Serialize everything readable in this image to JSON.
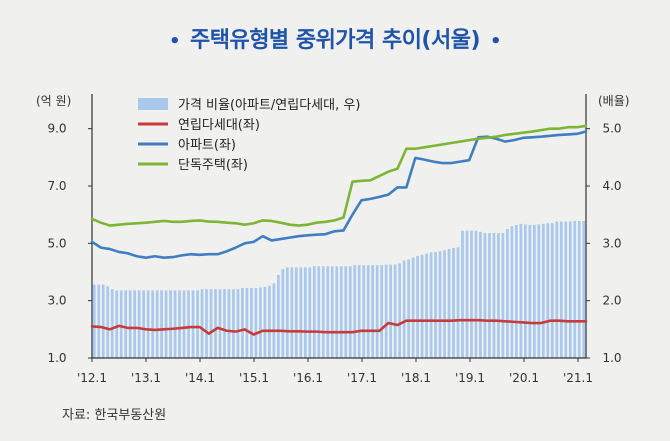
{
  "title": "주택유형별 중위가격 추이(서울)",
  "source": "자료: 한국부동산원",
  "chart_data": {
    "type": "line",
    "title": "주택유형별 중위가격 추이(서울)",
    "y_left_label": "(억 원)",
    "y_right_label": "(배율)",
    "y_left_ticks": [
      "9.0",
      "7.0",
      "5.0",
      "3.0",
      "1.0"
    ],
    "y_right_ticks": [
      "5.0",
      "4.0",
      "3.0",
      "2.0",
      "1.0"
    ],
    "y_left_lim": [
      1,
      10
    ],
    "y_right_lim": [
      1,
      5.5
    ],
    "x_ticks": [
      "'12.1",
      "'13.1",
      "'14.1",
      "'15.1",
      "'16.1",
      "'17.1",
      "'18.1",
      "'19.1",
      "'20.1",
      "'21.1"
    ],
    "x_range": [
      0,
      110
    ],
    "legend_position": "top-left",
    "series": [
      {
        "name": "가격 비율(아파트/연립다세대, 우)",
        "kind": "bar",
        "axis": "right",
        "color": "#a9c8ee",
        "values": [
          2.28,
          2.28,
          2.28,
          2.25,
          2.2,
          2.18,
          2.18,
          2.18,
          2.18,
          2.18,
          2.18,
          2.18,
          2.18,
          2.18,
          2.18,
          2.18,
          2.18,
          2.18,
          2.18,
          2.18,
          2.18,
          2.18,
          2.18,
          2.18,
          2.2,
          2.2,
          2.2,
          2.2,
          2.2,
          2.2,
          2.2,
          2.2,
          2.2,
          2.22,
          2.22,
          2.22,
          2.22,
          2.23,
          2.24,
          2.26,
          2.3,
          2.45,
          2.55,
          2.58,
          2.58,
          2.58,
          2.58,
          2.58,
          2.58,
          2.6,
          2.6,
          2.6,
          2.6,
          2.6,
          2.6,
          2.6,
          2.6,
          2.6,
          2.62,
          2.62,
          2.62,
          2.62,
          2.62,
          2.62,
          2.62,
          2.63,
          2.63,
          2.63,
          2.65,
          2.7,
          2.72,
          2.75,
          2.78,
          2.8,
          2.82,
          2.84,
          2.85,
          2.86,
          2.88,
          2.9,
          2.92,
          2.93,
          3.22,
          3.22,
          3.22,
          3.22,
          3.2,
          3.18,
          3.18,
          3.18,
          3.18,
          3.18,
          3.25,
          3.3,
          3.32,
          3.34,
          3.33,
          3.32,
          3.32,
          3.33,
          3.34,
          3.35,
          3.35,
          3.38,
          3.38,
          3.38,
          3.38,
          3.39,
          3.39,
          3.39
        ]
      },
      {
        "name": "연립다세대(좌)",
        "kind": "line",
        "axis": "left",
        "color": "#c63b3b",
        "x": [
          0,
          2,
          4,
          6,
          8,
          10,
          12,
          14,
          16,
          18,
          20,
          22,
          24,
          26,
          28,
          30,
          32,
          34,
          36,
          38,
          40,
          42,
          44,
          46,
          48,
          50,
          52,
          54,
          56,
          58,
          60,
          62,
          64,
          66,
          68,
          70,
          72,
          74,
          76,
          78,
          80,
          82,
          84,
          86,
          88,
          90,
          92,
          94,
          96,
          98,
          100,
          102,
          104,
          106,
          108,
          110
        ],
        "values": [
          2.1,
          2.08,
          2.0,
          2.12,
          2.05,
          2.05,
          2.0,
          1.98,
          2.0,
          2.02,
          2.05,
          2.08,
          2.08,
          1.85,
          2.05,
          1.95,
          1.92,
          2.0,
          1.82,
          1.95,
          1.95,
          1.95,
          1.93,
          1.93,
          1.92,
          1.92,
          1.9,
          1.9,
          1.9,
          1.9,
          1.95,
          1.95,
          1.95,
          2.22,
          2.15,
          2.3,
          2.3,
          2.3,
          2.3,
          2.3,
          2.3,
          2.32,
          2.32,
          2.32,
          2.3,
          2.3,
          2.28,
          2.26,
          2.24,
          2.22,
          2.22,
          2.3,
          2.3,
          2.28,
          2.28,
          2.28
        ]
      },
      {
        "name": "아파트(좌)",
        "kind": "line",
        "axis": "left",
        "color": "#3f7ec2",
        "x": [
          0,
          2,
          4,
          6,
          8,
          10,
          12,
          14,
          16,
          18,
          20,
          22,
          24,
          26,
          28,
          30,
          32,
          34,
          36,
          38,
          40,
          42,
          44,
          46,
          48,
          50,
          52,
          54,
          56,
          58,
          60,
          62,
          64,
          66,
          68,
          70,
          72,
          74,
          76,
          78,
          80,
          82,
          84,
          86,
          88,
          90,
          92,
          94,
          96,
          98,
          100,
          102,
          104,
          106,
          108,
          110
        ],
        "values": [
          5.05,
          4.85,
          4.8,
          4.7,
          4.65,
          4.55,
          4.5,
          4.55,
          4.5,
          4.52,
          4.58,
          4.62,
          4.6,
          4.62,
          4.62,
          4.72,
          4.85,
          5.0,
          5.05,
          5.25,
          5.1,
          5.15,
          5.2,
          5.25,
          5.28,
          5.3,
          5.32,
          5.42,
          5.45,
          6.0,
          6.5,
          6.55,
          6.62,
          6.7,
          6.95,
          6.95,
          7.98,
          7.92,
          7.85,
          7.8,
          7.8,
          7.85,
          7.9,
          8.7,
          8.72,
          8.65,
          8.55,
          8.6,
          8.68,
          8.7,
          8.72,
          8.75,
          8.78,
          8.8,
          8.82,
          8.9
        ]
      },
      {
        "name": "단독주택(좌)",
        "kind": "line",
        "axis": "left",
        "color": "#7db537",
        "x": [
          0,
          2,
          4,
          6,
          8,
          10,
          12,
          14,
          16,
          18,
          20,
          22,
          24,
          26,
          28,
          30,
          32,
          34,
          36,
          38,
          40,
          42,
          44,
          46,
          48,
          50,
          52,
          54,
          56,
          58,
          60,
          62,
          64,
          66,
          68,
          70,
          72,
          74,
          76,
          78,
          80,
          82,
          84,
          86,
          88,
          90,
          92,
          94,
          96,
          98,
          100,
          102,
          104,
          106,
          108,
          110
        ],
        "values": [
          5.85,
          5.72,
          5.62,
          5.65,
          5.68,
          5.7,
          5.72,
          5.75,
          5.78,
          5.75,
          5.75,
          5.78,
          5.8,
          5.76,
          5.75,
          5.72,
          5.7,
          5.65,
          5.7,
          5.8,
          5.78,
          5.72,
          5.65,
          5.62,
          5.65,
          5.72,
          5.75,
          5.8,
          5.9,
          7.15,
          7.18,
          7.2,
          7.35,
          7.5,
          7.6,
          8.3,
          8.3,
          8.35,
          8.4,
          8.45,
          8.5,
          8.55,
          8.6,
          8.65,
          8.68,
          8.72,
          8.78,
          8.82,
          8.86,
          8.9,
          8.95,
          9.0,
          9.0,
          9.05,
          9.05,
          9.1
        ]
      }
    ]
  }
}
